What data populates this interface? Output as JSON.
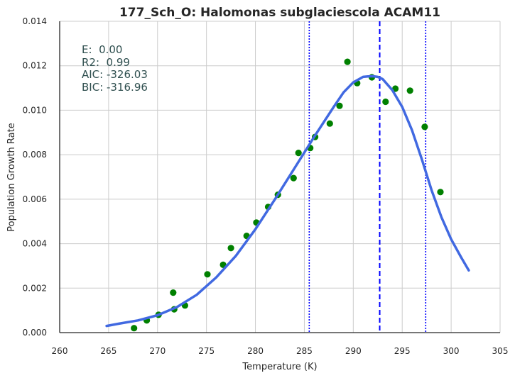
{
  "chart_data": {
    "type": "scatter",
    "title": "177_Sch_O: Halomonas subglaciescola ACAM11",
    "xlabel": "Temperature (K)",
    "ylabel": "Population Growth Rate",
    "xlim": [
      260,
      305
    ],
    "ylim": [
      0,
      0.014
    ],
    "xticks": [
      "260",
      "265",
      "270",
      "275",
      "280",
      "285",
      "290",
      "295",
      "300",
      "305"
    ],
    "yticks": [
      "0.000",
      "0.002",
      "0.004",
      "0.006",
      "0.008",
      "0.010",
      "0.012",
      "0.014"
    ],
    "grid": true,
    "annotations": [
      "E:  0.00",
      "R2:  0.99",
      "AIC: -326.03",
      "BIC: -316.96"
    ],
    "points": {
      "color": "#008000",
      "x": [
        267.6,
        268.9,
        270.1,
        271.6,
        271.7,
        272.8,
        275.1,
        276.7,
        277.5,
        279.1,
        280.1,
        281.3,
        282.3,
        283.9,
        284.4,
        285.6,
        286.1,
        287.6,
        288.6,
        289.4,
        290.4,
        291.9,
        293.3,
        294.3,
        295.8,
        297.3,
        298.9
      ],
      "y": [
        0.0002,
        0.00055,
        0.0008,
        0.0018,
        0.00105,
        0.00122,
        0.00262,
        0.00305,
        0.0038,
        0.00435,
        0.00495,
        0.00565,
        0.0062,
        0.00695,
        0.00808,
        0.0083,
        0.0088,
        0.0094,
        0.0102,
        0.01218,
        0.01122,
        0.01148,
        0.01038,
        0.01097,
        0.01088,
        0.00925,
        0.00632
      ]
    },
    "fit_curve": {
      "color": "#4169e1",
      "x": [
        264.8,
        266,
        268,
        270,
        272,
        274,
        276,
        278,
        280,
        282,
        284,
        286,
        288,
        289,
        290,
        291,
        291.5,
        292,
        292.5,
        293,
        294,
        295,
        296,
        297,
        298,
        299,
        300,
        301,
        301.8
      ],
      "y": [
        0.0003,
        0.0004,
        0.00055,
        0.00078,
        0.00115,
        0.0017,
        0.00248,
        0.00345,
        0.00465,
        0.006,
        0.0074,
        0.0088,
        0.01015,
        0.0108,
        0.01125,
        0.0115,
        0.01152,
        0.01153,
        0.0115,
        0.0114,
        0.0109,
        0.01015,
        0.0091,
        0.0078,
        0.0064,
        0.0052,
        0.0042,
        0.0034,
        0.0028
      ]
    },
    "vlines": [
      {
        "x": 292.7,
        "style": "dashed",
        "color": "#0000ff"
      },
      {
        "x": 285.5,
        "style": "dotted",
        "color": "#0000ff"
      },
      {
        "x": 297.4,
        "style": "dotted",
        "color": "#0000ff"
      }
    ]
  }
}
